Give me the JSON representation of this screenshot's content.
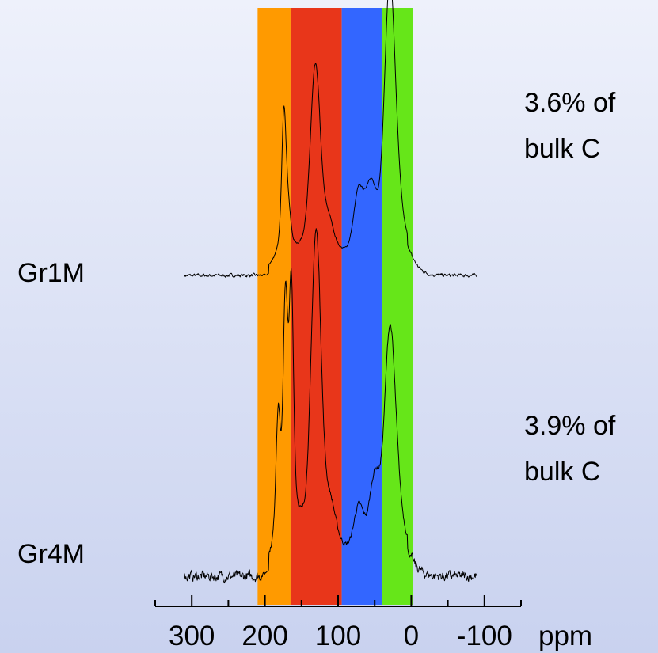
{
  "chart_data": {
    "type": "line",
    "xlabel": "ppm",
    "xlim": [
      350,
      -150
    ],
    "x_ticks": [
      "300",
      "200",
      "100",
      "0",
      "-100"
    ],
    "x_tick_values": [
      300,
      200,
      100,
      0,
      -100
    ],
    "minor_tick_values": [
      350,
      250,
      150,
      50,
      -50,
      -150
    ],
    "regions": [
      {
        "from": 210,
        "to": 165,
        "color": "#ff9a00"
      },
      {
        "from": 165,
        "to": 95,
        "color": "#e8361a"
      },
      {
        "from": 95,
        "to": 40,
        "color": "#3366ff"
      },
      {
        "from": 40,
        "to": -2,
        "color": "#66e619"
      }
    ],
    "series": [
      {
        "name": "Gr1M",
        "annotation_line1": "3.6% of",
        "annotation_line2": "bulk C",
        "peaks": [
          {
            "ppm": 174,
            "height": 0.6
          },
          {
            "ppm": 168,
            "height": 0.14
          },
          {
            "ppm": 131,
            "height": 0.8
          },
          {
            "ppm": 113,
            "height": 0.1
          },
          {
            "ppm": 72,
            "height": 0.26
          },
          {
            "ppm": 56,
            "height": 0.22
          },
          {
            "ppm": 30,
            "height": 1.0
          },
          {
            "ppm": 22,
            "height": 0.25
          }
        ]
      },
      {
        "name": "Gr4M",
        "annotation_line1": "3.9% of",
        "annotation_line2": "bulk C",
        "peaks": [
          {
            "ppm": 182,
            "height": 0.38
          },
          {
            "ppm": 172,
            "height": 0.68
          },
          {
            "ppm": 164,
            "height": 0.72
          },
          {
            "ppm": 130,
            "height": 0.98
          },
          {
            "ppm": 110,
            "height": 0.08
          },
          {
            "ppm": 72,
            "height": 0.14
          },
          {
            "ppm": 50,
            "height": 0.18
          },
          {
            "ppm": 30,
            "height": 0.58
          },
          {
            "ppm": 22,
            "height": 0.18
          }
        ]
      }
    ]
  }
}
